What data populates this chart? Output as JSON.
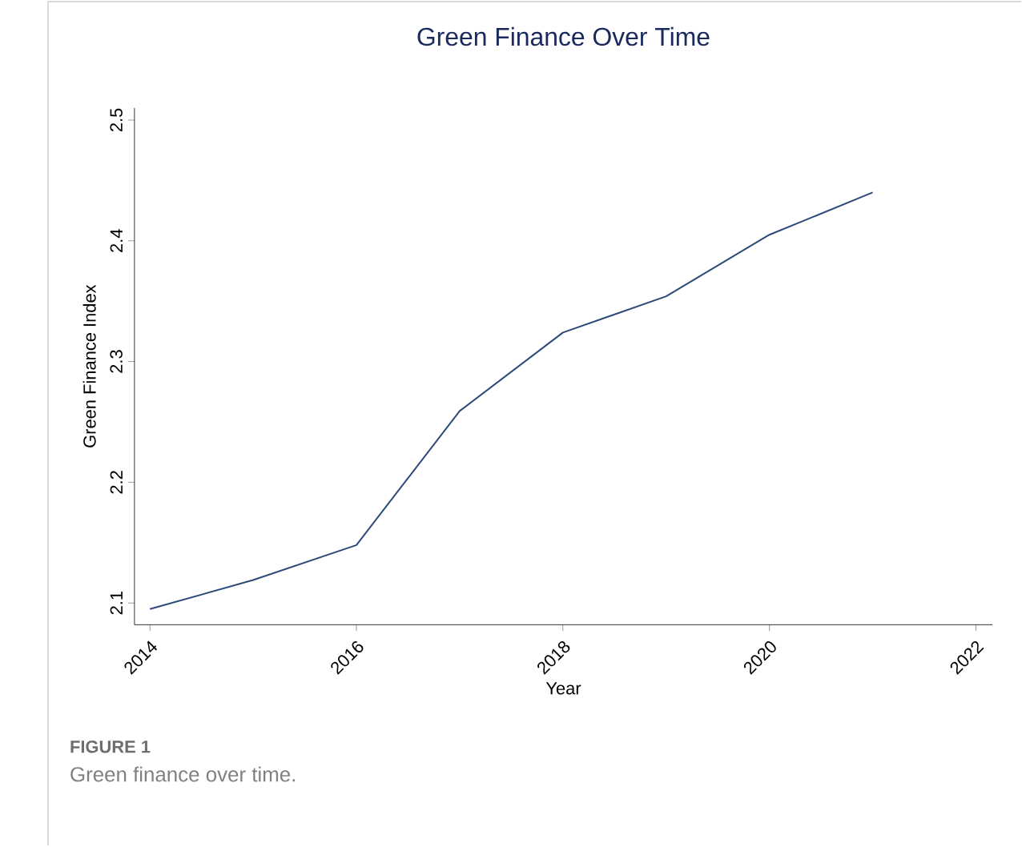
{
  "chart_data": {
    "type": "line",
    "title": "Green Finance Over Time",
    "xlabel": "Year",
    "ylabel": "Green Finance Index",
    "x": [
      2014,
      2015,
      2016,
      2017,
      2018,
      2019,
      2020,
      2021
    ],
    "series": [
      {
        "color": "#2b4a7a",
        "values": [
          2.095,
          2.119,
          2.148,
          2.259,
          2.324,
          2.354,
          2.405,
          2.44
        ]
      }
    ],
    "xlim": [
      2013.85,
      2022.16
    ],
    "ylim": [
      2.082,
      2.51
    ],
    "xticks": [
      2014,
      2016,
      2018,
      2020,
      2022
    ],
    "yticks": [
      2.1,
      2.2,
      2.3,
      2.4,
      2.5
    ],
    "grid": false,
    "marker": "none",
    "line_style": "solid",
    "annotations": [
      "FIGURE 1",
      "Green finance over time."
    ]
  }
}
